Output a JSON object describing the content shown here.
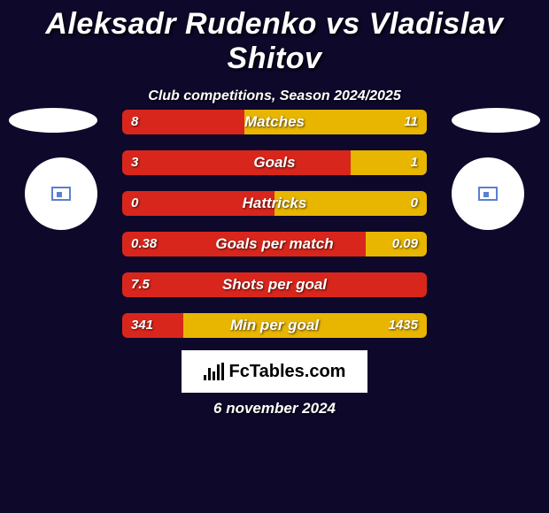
{
  "title": "Aleksadr Rudenko vs Vladislav Shitov",
  "subtitle": "Club competitions, Season 2024/2025",
  "date": "6 november 2024",
  "logo_text": "FcTables.com",
  "colors": {
    "left_bar": "#d9261c",
    "right_bar": "#e8b500",
    "background": "#0e082a"
  },
  "bar_style": {
    "height": 28,
    "gap": 18,
    "border_radius": 6,
    "label_fontsize": 17,
    "value_fontsize": 15
  },
  "stats": [
    {
      "label": "Matches",
      "left_val": "8",
      "right_val": "11",
      "left_pct": 40
    },
    {
      "label": "Goals",
      "left_val": "3",
      "right_val": "1",
      "left_pct": 75
    },
    {
      "label": "Hattricks",
      "left_val": "0",
      "right_val": "0",
      "left_pct": 50
    },
    {
      "label": "Goals per match",
      "left_val": "0.38",
      "right_val": "0.09",
      "left_pct": 80
    },
    {
      "label": "Shots per goal",
      "left_val": "7.5",
      "right_val": "",
      "left_pct": 100
    },
    {
      "label": "Min per goal",
      "left_val": "341",
      "right_val": "1435",
      "left_pct": 20
    }
  ]
}
